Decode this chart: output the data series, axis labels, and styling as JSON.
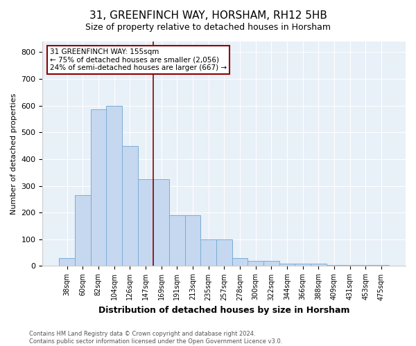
{
  "title1": "31, GREENFINCH WAY, HORSHAM, RH12 5HB",
  "title2": "Size of property relative to detached houses in Horsham",
  "xlabel": "Distribution of detached houses by size in Horsham",
  "ylabel": "Number of detached properties",
  "bar_labels": [
    "38sqm",
    "60sqm",
    "82sqm",
    "104sqm",
    "126sqm",
    "147sqm",
    "169sqm",
    "191sqm",
    "213sqm",
    "235sqm",
    "257sqm",
    "278sqm",
    "300sqm",
    "322sqm",
    "344sqm",
    "366sqm",
    "388sqm",
    "409sqm",
    "431sqm",
    "453sqm",
    "475sqm"
  ],
  "bar_values": [
    30,
    265,
    585,
    600,
    450,
    325,
    325,
    190,
    190,
    100,
    100,
    30,
    20,
    20,
    10,
    10,
    10,
    5,
    5,
    5,
    5
  ],
  "bar_color": "#c5d8f0",
  "bar_edge_color": "#7aadd4",
  "vline_x": 5.5,
  "vline_color": "#8b0000",
  "annotation_text": "31 GREENFINCH WAY: 155sqm\n← 75% of detached houses are smaller (2,056)\n24% of semi-detached houses are larger (667) →",
  "annotation_box_color": "white",
  "annotation_box_edge": "#8b0000",
  "ylim": [
    0,
    840
  ],
  "yticks": [
    0,
    100,
    200,
    300,
    400,
    500,
    600,
    700,
    800
  ],
  "footer": "Contains HM Land Registry data © Crown copyright and database right 2024.\nContains public sector information licensed under the Open Government Licence v3.0.",
  "bg_color": "#ffffff",
  "plot_bg_color": "#e8f0f8",
  "grid_color": "#ffffff",
  "title1_fontsize": 11,
  "title2_fontsize": 9
}
